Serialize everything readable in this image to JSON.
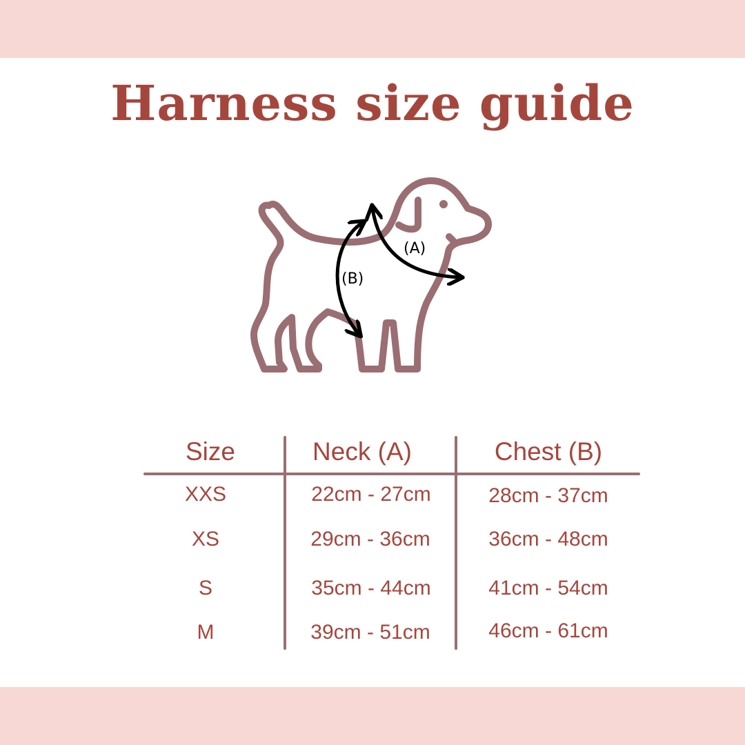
{
  "colors": {
    "band": "#f8d8d4",
    "title": "#a5463d",
    "text": "#a5463d",
    "lines": "#9a6e72",
    "dog_outline": "#9a6e72",
    "arrows": "#000000"
  },
  "title": "Harness size guide",
  "illustration": {
    "icon": "dog-outline-icon",
    "label_a": "(A)",
    "label_b": "(B)"
  },
  "table": {
    "headers": [
      "Size",
      "Neck (A)",
      "Chest (B)"
    ],
    "rows": [
      {
        "size": "XXS",
        "neck": "22cm - 27cm",
        "chest": "28cm - 37cm"
      },
      {
        "size": "XS",
        "neck": "29cm - 36cm",
        "chest": "36cm - 48cm"
      },
      {
        "size": "S",
        "neck": "35cm - 44cm",
        "chest": "41cm - 54cm"
      },
      {
        "size": "M",
        "neck": "39cm - 51cm",
        "chest": "46cm - 61cm"
      }
    ]
  }
}
